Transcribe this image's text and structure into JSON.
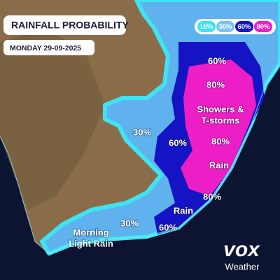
{
  "header": {
    "title": "RAINFALL PROBABILITY",
    "date": "MONDAY 29-09-2025"
  },
  "legend": {
    "items": [
      {
        "label": "10%",
        "color": "#3fe3f2"
      },
      {
        "label": "30%",
        "color": "#78c4f2"
      },
      {
        "label": "60%",
        "color": "#1414c4"
      },
      {
        "label": "80%",
        "color": "#ee1ec6"
      }
    ]
  },
  "map_labels": [
    {
      "lines": [
        "60%"
      ]
    },
    {
      "lines": [
        "80%"
      ]
    },
    {
      "lines": [
        "Showers &",
        "T-storms"
      ]
    },
    {
      "lines": [
        "30%"
      ]
    },
    {
      "lines": [
        "60%"
      ]
    },
    {
      "lines": [
        "80%"
      ]
    },
    {
      "lines": [
        "Rain"
      ]
    },
    {
      "lines": [
        "80%"
      ]
    },
    {
      "lines": [
        "Rain"
      ]
    },
    {
      "lines": [
        "30%"
      ]
    },
    {
      "lines": [
        "60%"
      ]
    },
    {
      "lines": [
        "Morning",
        "Light Rain"
      ]
    }
  ],
  "logo": {
    "brand": "vox",
    "subtitle": "Weather"
  }
}
